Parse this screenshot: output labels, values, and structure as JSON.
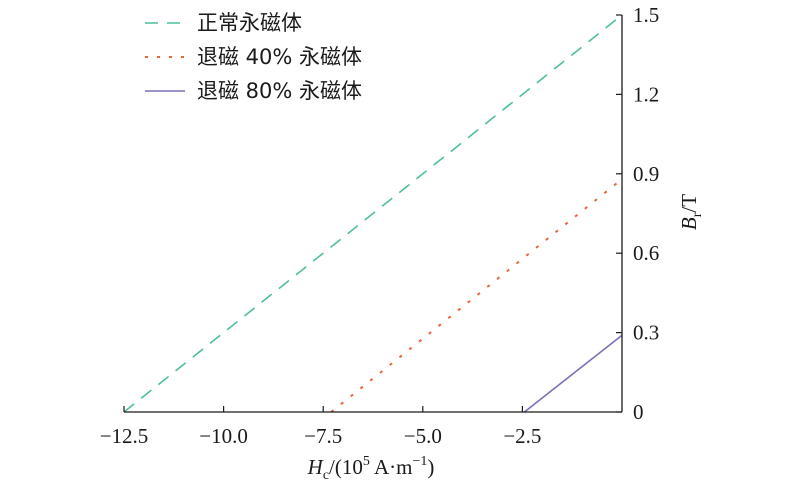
{
  "chart_data": {
    "type": "line",
    "xlabel": {
      "main": "H",
      "sub": "c",
      "rest": "/(10",
      "sup": "5",
      "unit": " A·m",
      "unit_sup": "−1",
      "close": ")"
    },
    "ylabel": {
      "main": "B",
      "sub": "r",
      "rest": "/T"
    },
    "xlim": [
      -12.5,
      0
    ],
    "ylim": [
      0,
      1.5
    ],
    "x_ticks": [
      -12.5,
      -10.0,
      -7.5,
      -5.0,
      -2.5
    ],
    "x_tick_labels": [
      "−12.5",
      "−10.0",
      "−7.5",
      "−5.0",
      "−2.5"
    ],
    "y_ticks": [
      0,
      0.3,
      0.6,
      0.9,
      1.2,
      1.5
    ],
    "y_tick_labels": [
      "0",
      "0.3",
      "0.6",
      "0.9",
      "1.2",
      "1.5"
    ],
    "y_axis_side": "right",
    "grid": false,
    "legend_position": "top-left",
    "series": [
      {
        "name": "正常永磁体",
        "style": "dashed",
        "color": "#4dbf9b",
        "x": [
          -12.5,
          0
        ],
        "y": [
          0,
          1.5
        ]
      },
      {
        "name": "退磁 40% 永磁体",
        "style": "dotted",
        "color": "#e8643a",
        "x": [
          -7.3,
          0
        ],
        "y": [
          0,
          0.88
        ]
      },
      {
        "name": "退磁 80% 永磁体",
        "style": "solid",
        "color": "#7b6fb6",
        "x": [
          -2.45,
          0
        ],
        "y": [
          0,
          0.29
        ]
      }
    ]
  }
}
